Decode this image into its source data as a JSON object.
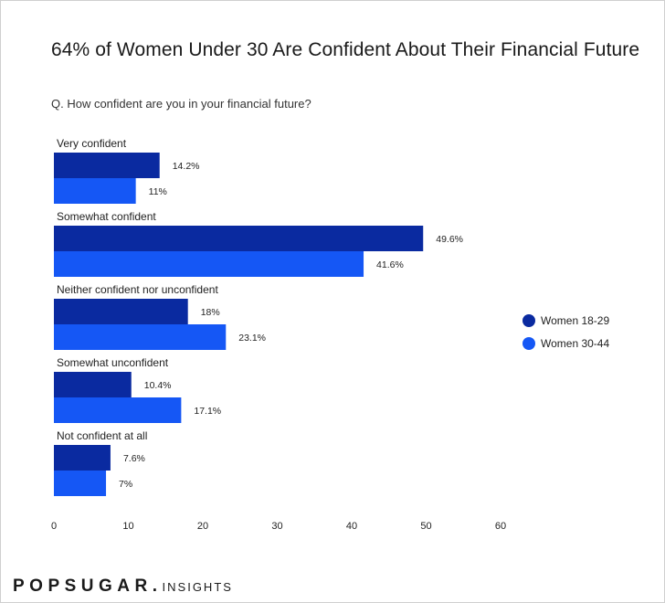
{
  "colors": {
    "women_18_29": "#0a2aa0",
    "women_30_44": "#1557f5"
  },
  "header": {
    "title": "64% of Women Under 30 Are Confident About Their Financial Future",
    "question": "Q. How confident are you in your financial future?"
  },
  "legend": {
    "items": [
      {
        "label": "Women 18-29"
      },
      {
        "label": "Women 30-44"
      }
    ]
  },
  "brand": {
    "main": "POPSUGAR.",
    "sub": "INSIGHTS"
  },
  "chart_data": {
    "type": "bar",
    "orientation": "horizontal",
    "title": "64% of Women Under 30 Are Confident About Their Financial Future",
    "subtitle": "Q. How confident are you in your financial future?",
    "categories": [
      "Very confident",
      "Somewhat confident",
      "Neither confident nor unconfident",
      "Somewhat unconfident",
      "Not confident at all"
    ],
    "series": [
      {
        "name": "Women 18-29",
        "values": [
          14.2,
          49.6,
          18,
          10.4,
          7.6
        ],
        "labels": [
          "14.2%",
          "49.6%",
          "18%",
          "10.4%",
          "7.6%"
        ]
      },
      {
        "name": "Women 30-44",
        "values": [
          11,
          41.6,
          23.1,
          17.1,
          7
        ],
        "labels": [
          "11%",
          "41.6%",
          "23.1%",
          "17.1%",
          "7%"
        ]
      }
    ],
    "xlim": [
      0,
      60
    ],
    "xticks": [
      "0",
      "10",
      "20",
      "30",
      "40",
      "50",
      "60"
    ],
    "legend_position": "right",
    "grid": false
  }
}
